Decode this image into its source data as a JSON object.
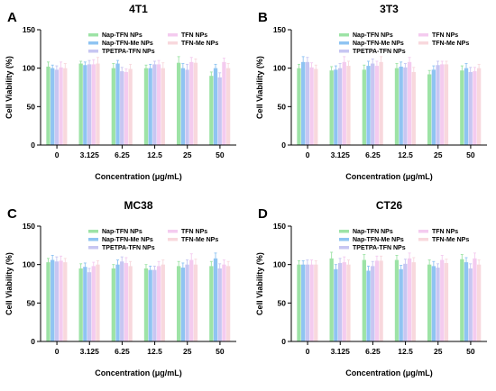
{
  "colors": {
    "Nap-TFN NPs": "#9de3a6",
    "Nap-TFN-Me NPs": "#8fc4f2",
    "TPETPA-TFN NPs": "#c7c6f2",
    "TFN NPs": "#f4cbef",
    "TFN-Me NPs": "#f8d8dd"
  },
  "chart_data": [
    {
      "type": "bar",
      "panel_letter": "A",
      "title": "4T1",
      "xlabel": "Concentration (μg/mL)",
      "ylabel": "Cell Viability (%)",
      "ylim": [
        0,
        150
      ],
      "yticks": [
        0,
        50,
        100,
        150
      ],
      "categories": [
        "0",
        "3.125",
        "6.25",
        "12.5",
        "25",
        "50"
      ],
      "legend_position": "top-right",
      "series": [
        {
          "name": "Nap-TFN NPs",
          "values": [
            102,
            106,
            100,
            100,
            107,
            90
          ],
          "errors": [
            6,
            3,
            6,
            4,
            8,
            5
          ]
        },
        {
          "name": "Nap-TFN-Me NPs",
          "values": [
            100,
            104,
            106,
            100,
            100,
            100
          ],
          "errors": [
            4,
            4,
            4,
            5,
            6,
            5
          ]
        },
        {
          "name": "TPETPA-TFN NPs",
          "values": [
            98,
            105,
            96,
            105,
            98,
            88
          ],
          "errors": [
            5,
            5,
            5,
            4,
            7,
            6
          ]
        },
        {
          "name": "TFN NPs",
          "values": [
            101,
            105,
            95,
            105,
            108,
            108
          ],
          "errors": [
            7,
            6,
            4,
            5,
            6,
            5
          ]
        },
        {
          "name": "TFN-Me NPs",
          "values": [
            100,
            106,
            99,
            100,
            107,
            100
          ],
          "errors": [
            6,
            8,
            6,
            7,
            5,
            6
          ]
        }
      ]
    },
    {
      "type": "bar",
      "panel_letter": "B",
      "title": "3T3",
      "xlabel": "Concentration (μg/mL)",
      "ylabel": "Cell Viability (%)",
      "ylim": [
        0,
        150
      ],
      "yticks": [
        0,
        50,
        100,
        150
      ],
      "categories": [
        "0",
        "3.125",
        "6.25",
        "12.5",
        "25",
        "50"
      ],
      "legend_position": "top-right",
      "series": [
        {
          "name": "Nap-TFN NPs",
          "values": [
            100,
            97,
            98,
            100,
            92,
            97
          ],
          "errors": [
            5,
            5,
            6,
            6,
            5,
            6
          ]
        },
        {
          "name": "Nap-TFN-Me NPs",
          "values": [
            108,
            98,
            103,
            102,
            98,
            100
          ],
          "errors": [
            7,
            5,
            6,
            6,
            5,
            6
          ]
        },
        {
          "name": "TPETPA-TFN NPs",
          "values": [
            108,
            100,
            106,
            101,
            104,
            95
          ],
          "errors": [
            6,
            6,
            6,
            5,
            5,
            6
          ]
        },
        {
          "name": "TFN NPs",
          "values": [
            101,
            108,
            103,
            108,
            105,
            96
          ],
          "errors": [
            6,
            7,
            6,
            6,
            4,
            5
          ]
        },
        {
          "name": "TFN-Me NPs",
          "values": [
            99,
            103,
            108,
            95,
            105,
            100
          ],
          "errors": [
            5,
            6,
            7,
            6,
            4,
            5
          ]
        }
      ]
    },
    {
      "type": "bar",
      "panel_letter": "C",
      "title": "MC38",
      "xlabel": "Concentration (μg/mL)",
      "ylabel": "Cell Viability (%)",
      "ylim": [
        0,
        150
      ],
      "yticks": [
        0,
        50,
        100,
        150
      ],
      "categories": [
        "0",
        "3.125",
        "6.25",
        "12.5",
        "25",
        "50"
      ],
      "legend_position": "top-right",
      "series": [
        {
          "name": "Nap-TFN NPs",
          "values": [
            103,
            95,
            95,
            95,
            98,
            98
          ],
          "errors": [
            5,
            6,
            5,
            5,
            6,
            6
          ]
        },
        {
          "name": "Nap-TFN-Me NPs",
          "values": [
            106,
            97,
            100,
            93,
            96,
            108
          ],
          "errors": [
            6,
            5,
            6,
            5,
            6,
            7
          ]
        },
        {
          "name": "TPETPA-TFN NPs",
          "values": [
            104,
            90,
            104,
            93,
            100,
            95
          ],
          "errors": [
            6,
            5,
            6,
            5,
            6,
            6
          ]
        },
        {
          "name": "TFN NPs",
          "values": [
            105,
            98,
            102,
            98,
            106,
            100
          ],
          "errors": [
            6,
            5,
            7,
            6,
            8,
            6
          ]
        },
        {
          "name": "TFN-Me NPs",
          "values": [
            103,
            100,
            98,
            100,
            100,
            98
          ],
          "errors": [
            5,
            5,
            6,
            6,
            7,
            6
          ]
        }
      ]
    },
    {
      "type": "bar",
      "panel_letter": "D",
      "title": "CT26",
      "xlabel": "Concentration (μg/mL)",
      "ylabel": "Cell Viability (%)",
      "ylim": [
        0,
        150
      ],
      "yticks": [
        0,
        50,
        100,
        150
      ],
      "categories": [
        "0",
        "3.125",
        "6.25",
        "12.5",
        "25",
        "50"
      ],
      "legend_position": "top-right",
      "series": [
        {
          "name": "Nap-TFN NPs",
          "values": [
            100,
            108,
            106,
            106,
            100,
            107
          ],
          "errors": [
            5,
            8,
            7,
            6,
            6,
            6
          ]
        },
        {
          "name": "Nap-TFN-Me NPs",
          "values": [
            100,
            94,
            92,
            94,
            98,
            103
          ],
          "errors": [
            5,
            6,
            6,
            5,
            6,
            6
          ]
        },
        {
          "name": "TPETPA-TFN NPs",
          "values": [
            100,
            102,
            98,
            101,
            96,
            95
          ],
          "errors": [
            6,
            6,
            6,
            6,
            5,
            6
          ]
        },
        {
          "name": "TFN NPs",
          "values": [
            100,
            103,
            105,
            108,
            106,
            108
          ],
          "errors": [
            6,
            7,
            6,
            7,
            6,
            7
          ]
        },
        {
          "name": "TFN-Me NPs",
          "values": [
            100,
            100,
            105,
            103,
            102,
            100
          ],
          "errors": [
            5,
            6,
            6,
            6,
            5,
            6
          ]
        }
      ]
    }
  ]
}
